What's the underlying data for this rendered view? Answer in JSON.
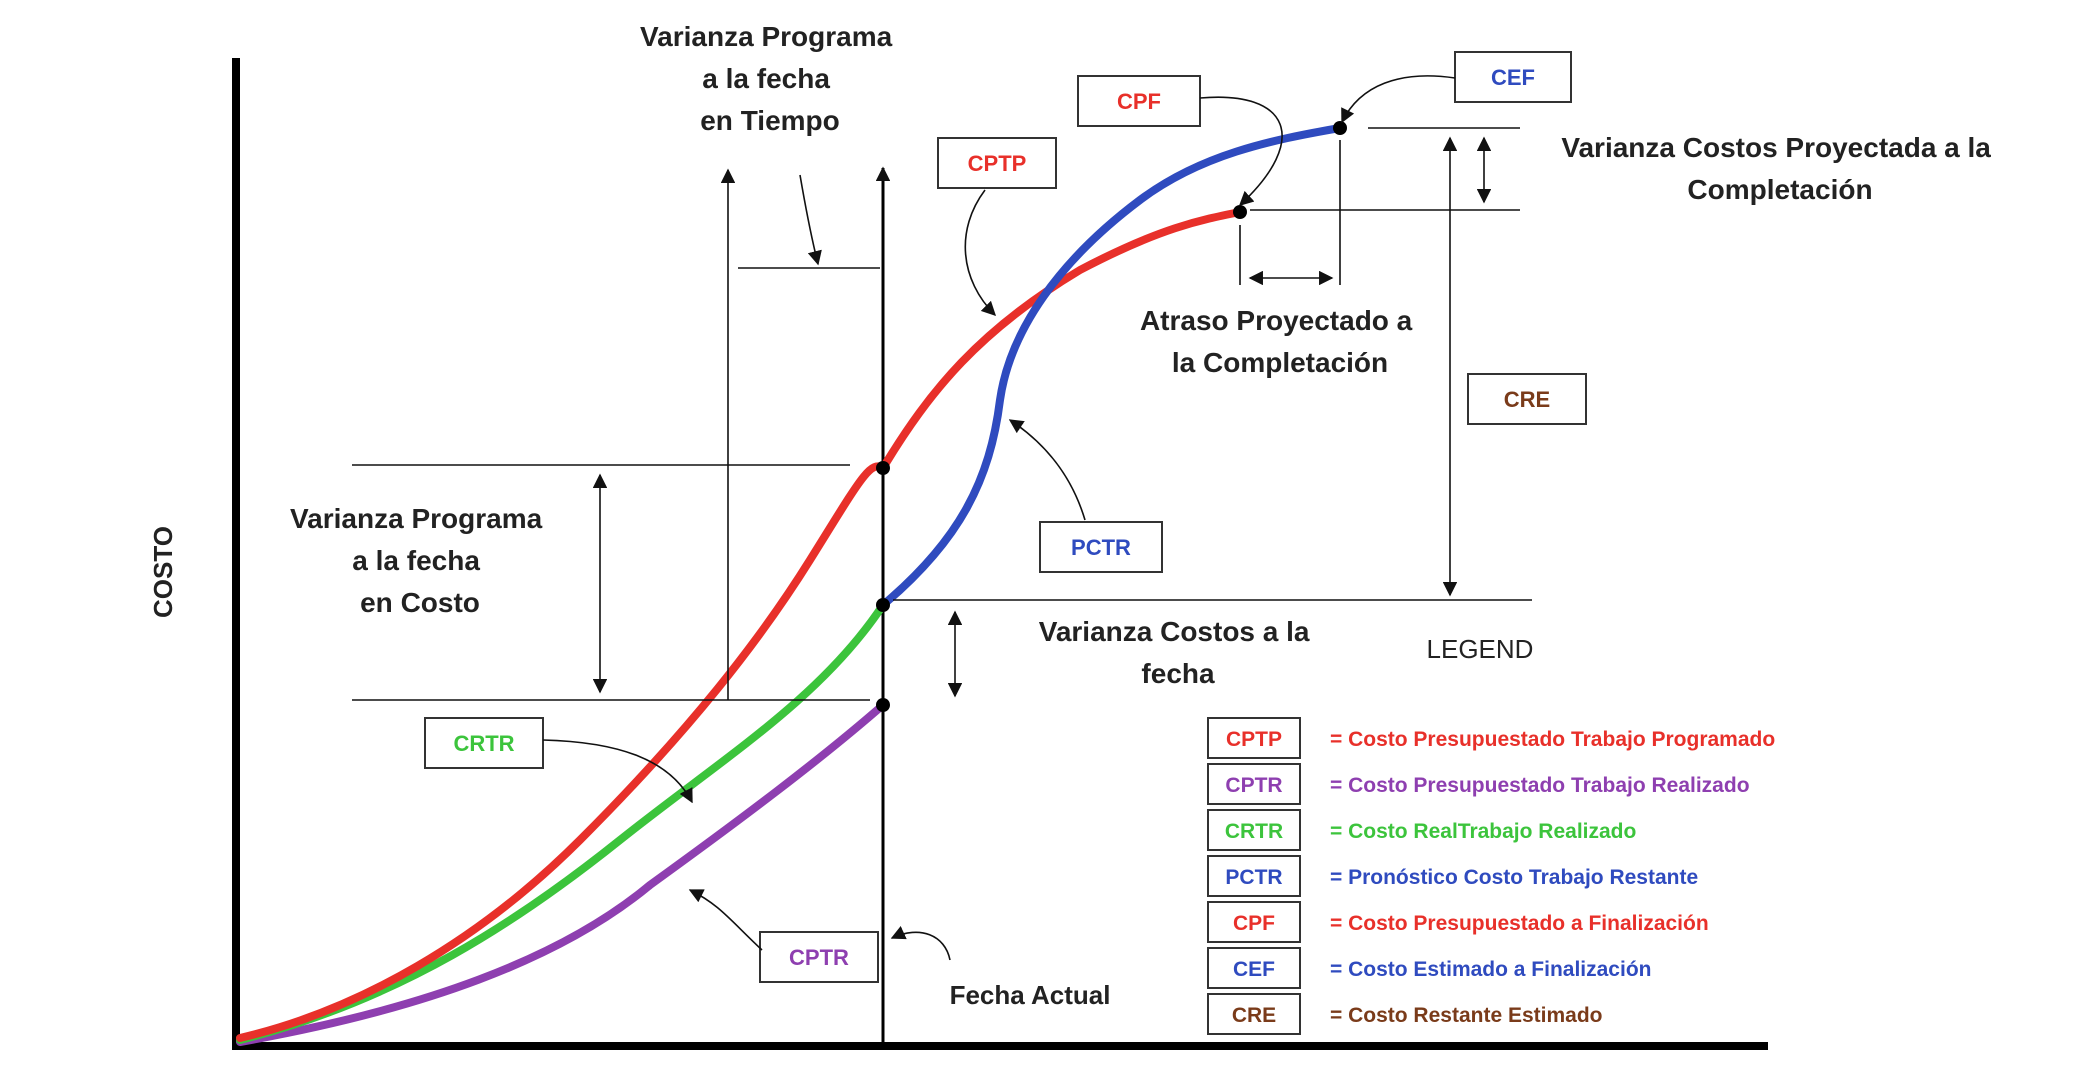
{
  "y_axis_label": "COSTO",
  "labels": {
    "sv_time": [
      "Varianza Programa",
      "a la fecha",
      "en Tiempo"
    ],
    "sv_cost": [
      "Varianza Programa",
      "a la fecha",
      "en Costo"
    ],
    "cv_date": [
      "Varianza Costos a la",
      "fecha"
    ],
    "cv_projected": [
      "Varianza Costos Proyectada a la",
      "Completación"
    ],
    "delay_projected": [
      "Atraso Proyectado a",
      "la Completación"
    ],
    "current_date": "Fecha Actual"
  },
  "callouts": {
    "cptp": "CPTP",
    "cpf": "CPF",
    "cef": "CEF",
    "cre": "CRE",
    "pctr": "PCTR",
    "crtr": "CRTR",
    "cptr": "CPTR"
  },
  "legend": {
    "title": "LEGEND",
    "items": [
      {
        "code": "CPTP",
        "text": "= Costo Presupuestado Trabajo Programado",
        "color": "#e8302a"
      },
      {
        "code": "CPTR",
        "text": "= Costo Presupuestado Trabajo Realizado",
        "color": "#8e3fb0"
      },
      {
        "code": "CRTR",
        "text": "= Costo RealTrabajo Realizado",
        "color": "#3cc43c"
      },
      {
        "code": "PCTR",
        "text": "= Pronóstico Costo Trabajo Restante",
        "color": "#2f4bbf"
      },
      {
        "code": "CPF",
        "text": "= Costo Presupuestado a Finalización",
        "color": "#e8302a"
      },
      {
        "code": "CEF",
        "text": "= Costo Estimado a Finalización",
        "color": "#2f4bbf"
      },
      {
        "code": "CRE",
        "text": "= Costo Restante Estimado",
        "color": "#7a3b1a"
      }
    ]
  },
  "colors": {
    "cptp": "#e8302a",
    "cptr": "#8e3fb0",
    "crtr": "#3cc43c",
    "pctr": "#2f4bbf",
    "cre": "#7a3b1a",
    "axis": "#000000"
  }
}
